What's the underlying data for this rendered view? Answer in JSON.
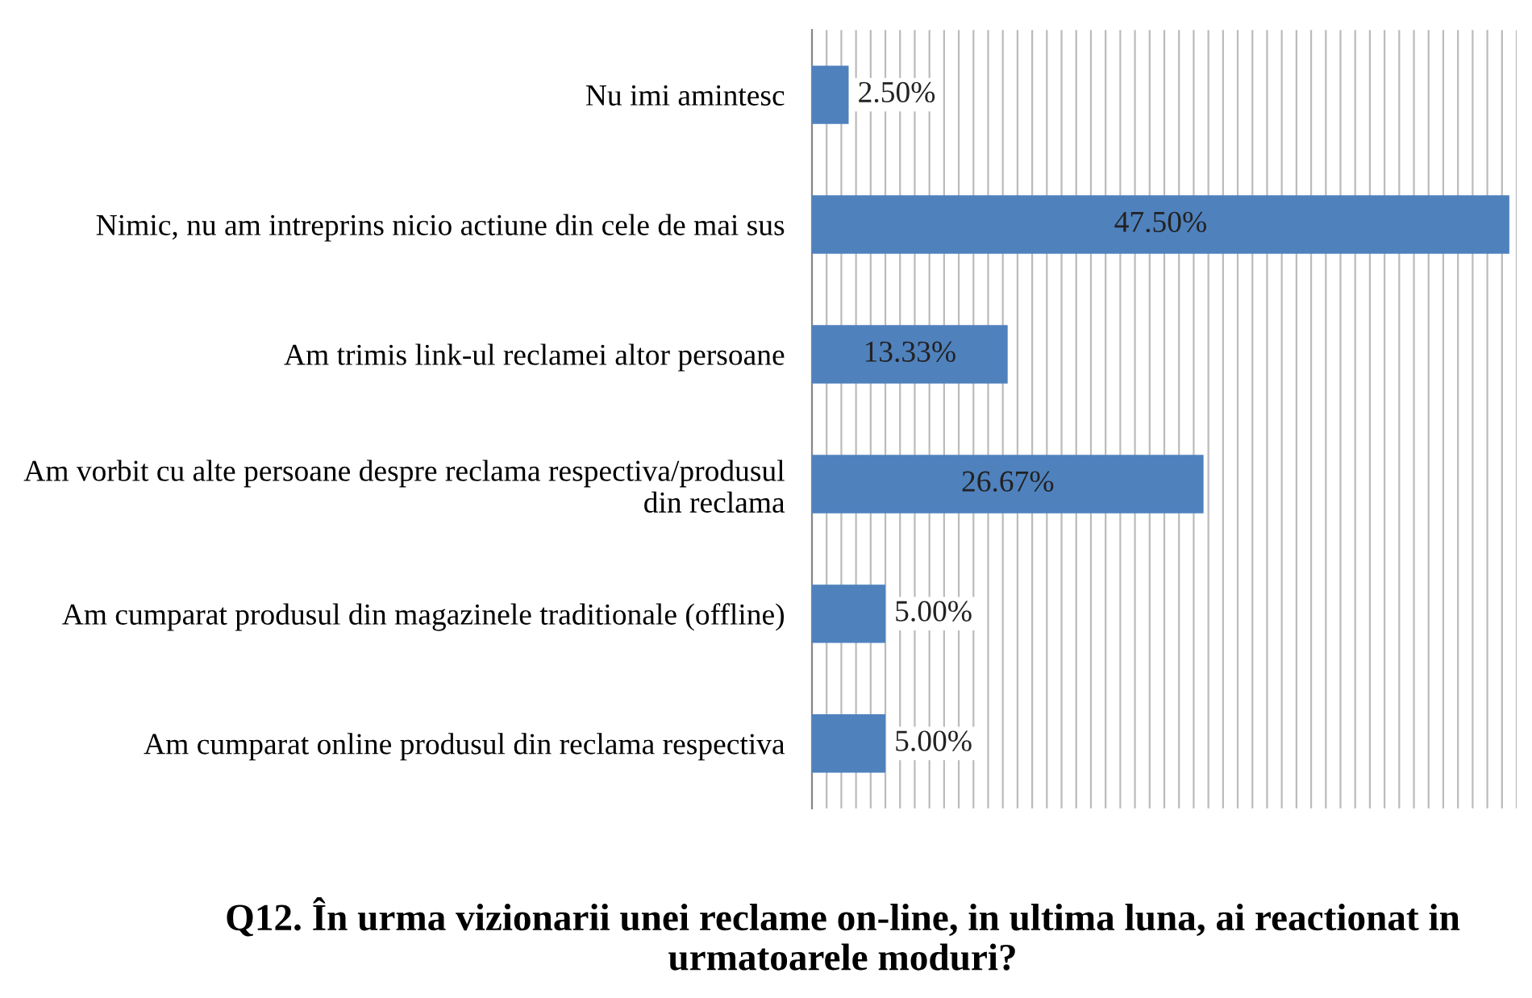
{
  "chart_data": {
    "type": "bar",
    "orientation": "horizontal",
    "title": "Q12. În urma vizionarii unei reclame on-line, in ultima luna, ai reactionat in urmatoarele moduri?",
    "categories": [
      "Nu imi amintesc",
      "Nimic, nu am intreprins nicio actiune din cele de mai sus",
      "Am trimis link-ul reclamei altor persoane",
      "Am vorbit cu alte persoane despre reclama respectiva/produsul din reclama",
      "Am cumparat produsul din magazinele traditionale (offline)",
      "Am cumparat online produsul din reclama respectiva"
    ],
    "values": [
      2.5,
      47.5,
      13.33,
      26.67,
      5.0,
      5.0
    ],
    "value_labels": [
      "2.50%",
      "47.50%",
      "13.33%",
      "26.67%",
      "5.00%",
      "5.00%"
    ],
    "color": "#4f81bd",
    "xlim": [
      0,
      48
    ],
    "xticks": [
      {
        "value": 0,
        "label": null
      },
      {
        "value": 1,
        "label": null
      },
      {
        "value": 2,
        "label": null
      },
      {
        "value": 3,
        "label": null
      },
      {
        "value": 4,
        "label": null
      },
      {
        "value": 5,
        "label": null
      },
      {
        "value": 6,
        "label": null
      },
      {
        "value": 7,
        "label": null
      },
      {
        "value": 8,
        "label": null
      },
      {
        "value": 9,
        "label": null
      },
      {
        "value": 10,
        "label": null
      },
      {
        "value": 11,
        "label": null
      },
      {
        "value": 12,
        "label": null
      },
      {
        "value": 13,
        "label": null
      },
      {
        "value": 14,
        "label": null
      },
      {
        "value": 15,
        "label": null
      },
      {
        "value": 16,
        "label": null
      },
      {
        "value": 17,
        "label": null
      },
      {
        "value": 18,
        "label": null
      },
      {
        "value": 19,
        "label": null
      },
      {
        "value": 20,
        "label": null
      },
      {
        "value": 21,
        "label": null
      },
      {
        "value": 22,
        "label": null
      },
      {
        "value": 23,
        "label": null
      },
      {
        "value": 24,
        "label": null
      },
      {
        "value": 25,
        "label": null
      },
      {
        "value": 26,
        "label": null
      },
      {
        "value": 27,
        "label": null
      },
      {
        "value": 28,
        "label": null
      },
      {
        "value": 29,
        "label": null
      },
      {
        "value": 30,
        "label": null
      },
      {
        "value": 31,
        "label": null
      },
      {
        "value": 32,
        "label": null
      },
      {
        "value": 33,
        "label": null
      },
      {
        "value": 34,
        "label": null
      },
      {
        "value": 35,
        "label": null
      },
      {
        "value": 36,
        "label": null
      },
      {
        "value": 37,
        "label": null
      },
      {
        "value": 38,
        "label": null
      },
      {
        "value": 39,
        "label": null
      },
      {
        "value": 40,
        "label": null
      },
      {
        "value": 41,
        "label": null
      },
      {
        "value": 42,
        "label": null
      },
      {
        "value": 43,
        "label": null
      },
      {
        "value": 44,
        "label": null
      },
      {
        "value": 45,
        "label": null
      },
      {
        "value": 46,
        "label": null
      },
      {
        "value": 47,
        "label": null
      },
      {
        "value": 48,
        "label": null
      }
    ],
    "grid": "x",
    "tick_labels": "y",
    "legend": false
  }
}
